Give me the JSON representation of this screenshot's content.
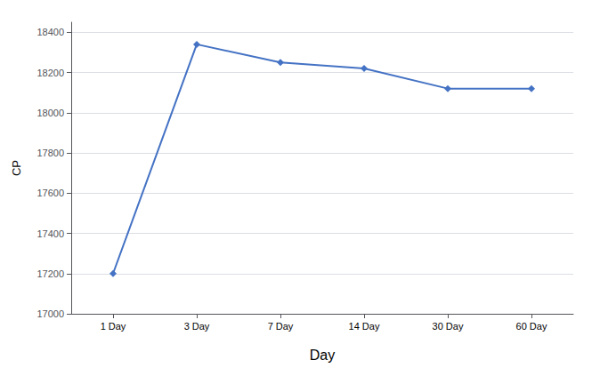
{
  "chart_data": {
    "type": "line",
    "xlabel": "Day",
    "ylabel": "CP",
    "categories": [
      "1 Day",
      "3 Day",
      "7 Day",
      "14 Day",
      "30 Day",
      "60 Day"
    ],
    "values": [
      17200,
      18340,
      18250,
      18220,
      18120,
      18120
    ],
    "color": "#4472C4",
    "marker": "diamond",
    "ylim": [
      17000,
      18450
    ],
    "yticks": [
      17000,
      17200,
      17400,
      17600,
      17800,
      18000,
      18200,
      18400
    ],
    "grid": true
  }
}
